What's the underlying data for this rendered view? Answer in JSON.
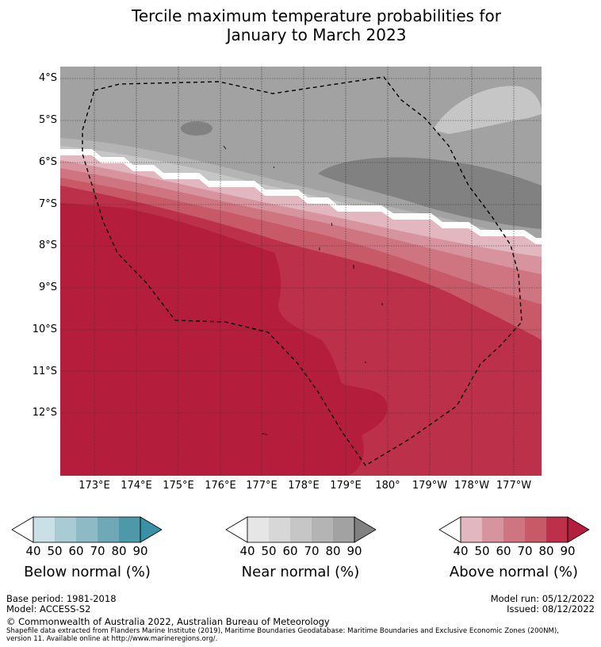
{
  "title_line1": "Tercile maximum temperature probabilities for",
  "title_line2": "January to March 2023",
  "y_ticks": [
    "4°S",
    "5°S",
    "6°S",
    "7°S",
    "8°S",
    "9°S",
    "10°S",
    "11°S",
    "12°S"
  ],
  "x_ticks": [
    "173°E",
    "174°E",
    "175°E",
    "176°E",
    "177°E",
    "178°E",
    "179°E",
    "180°",
    "179°W",
    "178°W",
    "177°W"
  ],
  "colorbars": [
    {
      "label": "Below normal (%)",
      "ticks": [
        "40",
        "50",
        "60",
        "70",
        "80",
        "90"
      ],
      "colors": [
        "#ffffff",
        "#c8e0e6",
        "#a9ccd4",
        "#8dbac5",
        "#6fa9b7",
        "#4f98aa",
        "#3891a4"
      ]
    },
    {
      "label": "Near normal (%)",
      "ticks": [
        "40",
        "50",
        "60",
        "70",
        "80",
        "90"
      ],
      "colors": [
        "#ffffff",
        "#e6e6e6",
        "#d7d7d7",
        "#c6c6c6",
        "#b4b4b4",
        "#a2a2a2",
        "#818181"
      ]
    },
    {
      "label": "Above normal (%)",
      "ticks": [
        "40",
        "50",
        "60",
        "70",
        "80",
        "90"
      ],
      "colors": [
        "#ffffff",
        "#e3b7bf",
        "#d7939e",
        "#cf7581",
        "#c85a68",
        "#bc3049",
        "#b51d3c"
      ]
    }
  ],
  "footer": {
    "base_period": "Base period: 1981-2018",
    "model": "Model: ACCESS-S2",
    "model_run": "Model run: 05/12/2022",
    "issued": "Issued: 08/12/2022",
    "copyright": "© Commonwealth of Australia 2022, Australian Bureau of Meteorology",
    "shapefile_line1": "Shapefile data extracted from Flanders Marine Institute (2019), Maritime Boundaries Geodatabase: Maritime Boundaries and Exclusive Economic Zones (200NM),",
    "shapefile_line2": "version 11. Available online at http://www.marineregions.org/."
  },
  "legend_colors": {
    "above_90": "#b51d3c",
    "above_80": "#bc3049",
    "above_70": "#c85a68",
    "above_60": "#cf7581",
    "above_50": "#d7939e",
    "above_40": "#e3b7bf",
    "near_90": "#818181",
    "near_80": "#a2a2a2",
    "near_70": "#b4b4b4",
    "near_60": "#c6c6c6",
    "near_50": "#d7d7d7"
  }
}
